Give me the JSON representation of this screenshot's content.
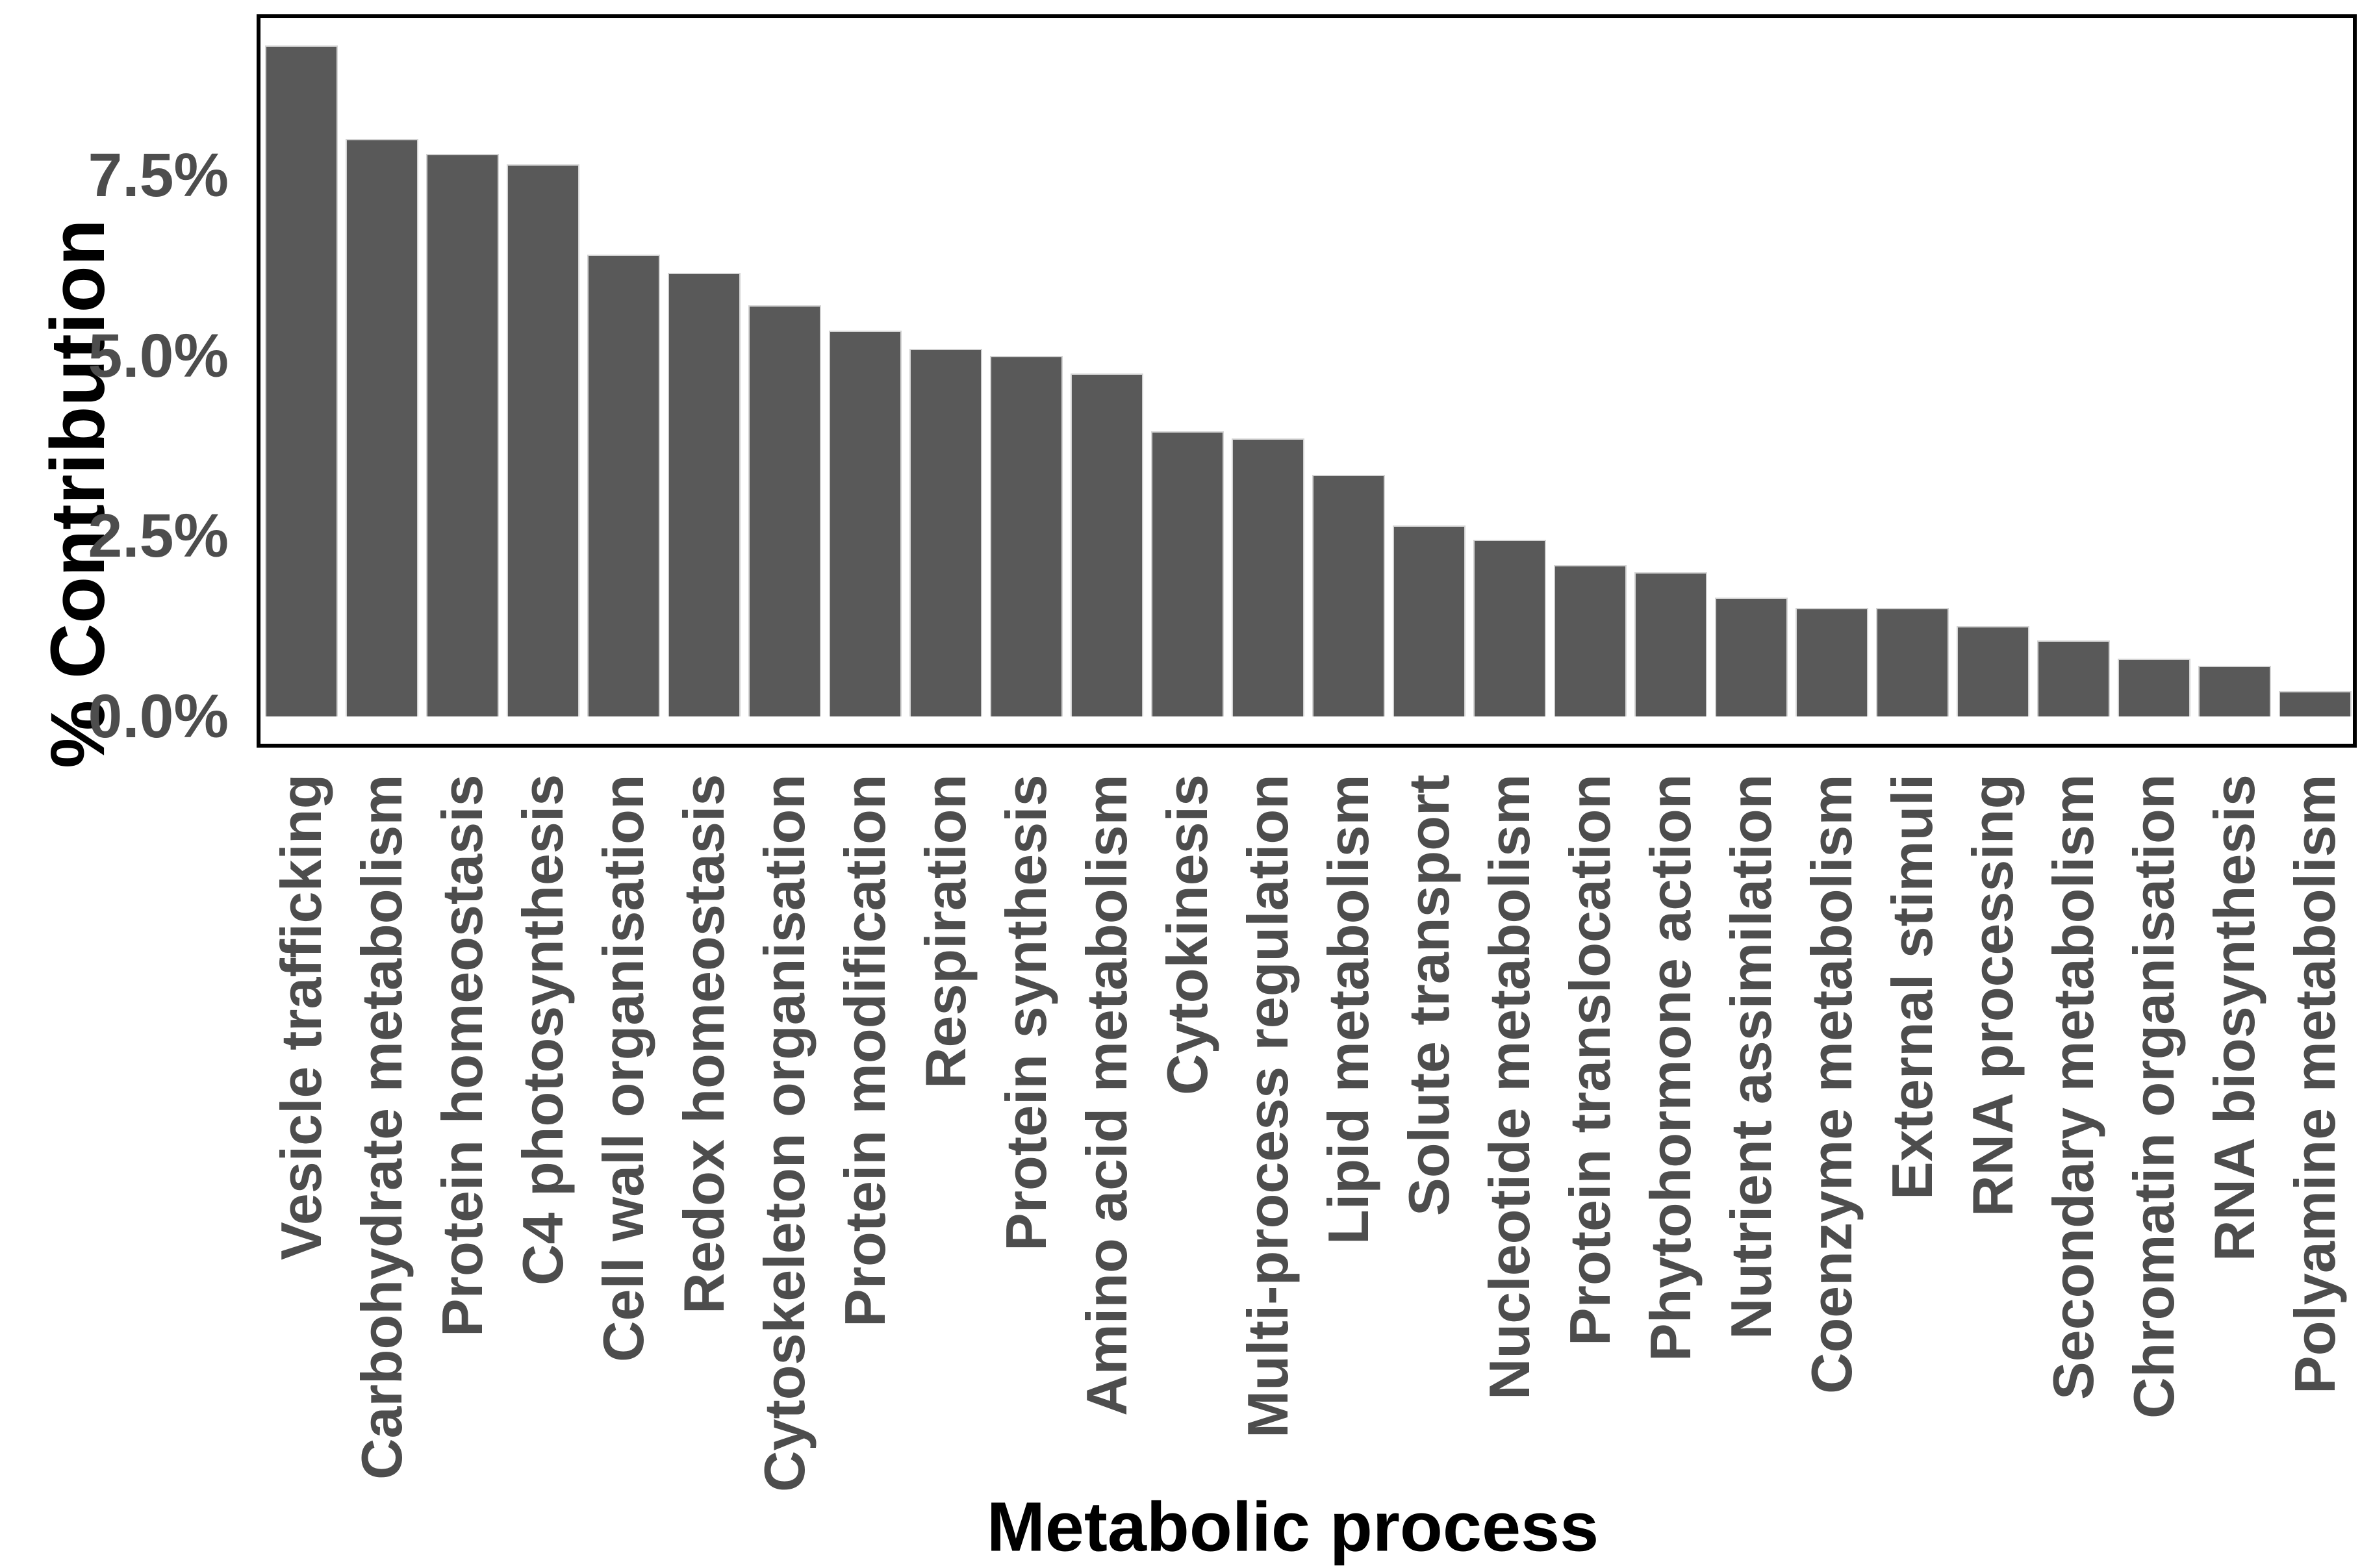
{
  "chart_data": {
    "type": "bar",
    "title": "",
    "xlabel": "Metabolic process",
    "ylabel": "% Contribution",
    "categories": [
      "Vesicle trafficking",
      "Carbohydrate metabolism",
      "Protein homeostasis",
      "C4 photosynthesis",
      "Cell wall organisation",
      "Redox homeostasis",
      "Cytoskeleton organisation",
      "Protein modification",
      "Respiration",
      "Protein synthesis",
      "Amino acid metabolism",
      "Cytokinesis",
      "Multi-process regulation",
      "Lipid metabolism",
      "Solute transport",
      "Nucleotide metabolism",
      "Protein translocation",
      "Phytohormone action",
      "Nutrient assimilation",
      "Coenzyme metabolism",
      "External stimuli",
      "RNA processing",
      "Secondary metabolism",
      "Chromatin organisation",
      "RNA biosynthesis",
      "Polyamine metabolism"
    ],
    "values": [
      9.3,
      8.0,
      7.8,
      7.65,
      6.4,
      6.15,
      5.7,
      5.35,
      5.1,
      5.0,
      4.75,
      3.95,
      3.85,
      3.35,
      2.65,
      2.45,
      2.1,
      2.0,
      1.65,
      1.5,
      1.5,
      1.25,
      1.05,
      0.8,
      0.7,
      0.35
    ],
    "ylim": [
      0,
      9.9
    ],
    "ytick_labels": [
      "0.0%",
      "2.5%",
      "5.0%",
      "7.5%"
    ],
    "ytick_values": [
      0,
      2.5,
      5.0,
      7.5
    ],
    "grid": "off",
    "legend": "none",
    "bar_color": "#595959",
    "bar_edge_color": "#d4d4d4",
    "axis_text_color": "#4d4d4d",
    "axis_title_color": "#000000",
    "panel_border_color": "#000000",
    "background": "#ffffff"
  }
}
